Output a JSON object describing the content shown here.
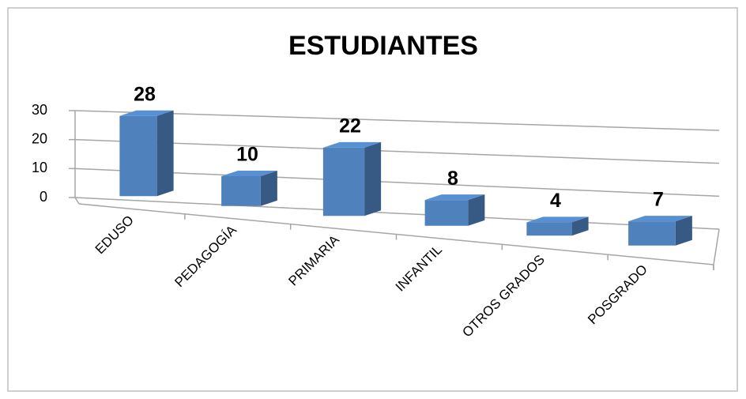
{
  "chart_data": {
    "type": "bar3d",
    "title": "ESTUDIANTES",
    "categories": [
      "EDUSO",
      "PEDAGOGÍA",
      "PRIMARIA",
      "INFANTIL",
      "OTROS GRADOS",
      "POSGRADO"
    ],
    "values": [
      28,
      10,
      22,
      8,
      4,
      7
    ],
    "color": "#4f81bd",
    "ylim": [
      0,
      30
    ],
    "yticks": [
      0,
      10,
      20,
      30
    ],
    "grid": true
  }
}
